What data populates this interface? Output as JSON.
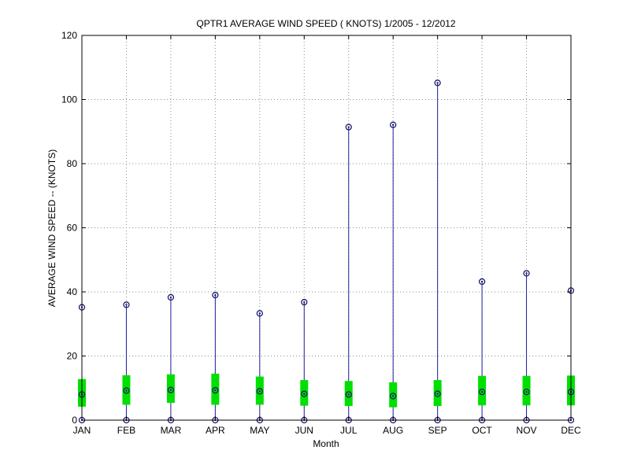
{
  "chart_data": {
    "type": "box",
    "title": "QPTR1  AVERAGE WIND SPEED ( KNOTS) 1/2005 - 12/2012",
    "xlabel": "Month",
    "ylabel": "AVERAGE WIND SPEED -- (KNOTS)",
    "categories": [
      "JAN",
      "FEB",
      "MAR",
      "APR",
      "MAY",
      "JUN",
      "JUL",
      "AUG",
      "SEP",
      "OCT",
      "NOV",
      "DEC"
    ],
    "ylim": [
      0,
      120
    ],
    "yticks": [
      0,
      20,
      40,
      60,
      80,
      100,
      120
    ],
    "grid": true,
    "min": [
      0,
      0,
      0,
      0,
      0,
      0,
      0,
      0,
      0,
      0,
      0,
      0
    ],
    "max": [
      35.2,
      36.0,
      38.3,
      39.0,
      33.3,
      36.8,
      91.4,
      92.1,
      105.2,
      43.2,
      45.8,
      40.4
    ],
    "q1": [
      4.2,
      4.8,
      5.4,
      4.8,
      4.8,
      4.5,
      4.4,
      4.0,
      4.4,
      4.6,
      4.6,
      4.6
    ],
    "median": [
      8.0,
      9.2,
      9.4,
      9.3,
      9.0,
      8.2,
      8.0,
      7.5,
      8.2,
      8.8,
      8.8,
      8.8
    ],
    "q3": [
      12.8,
      14.0,
      14.3,
      14.5,
      13.6,
      12.5,
      12.2,
      11.8,
      12.5,
      13.8,
      13.8,
      13.9
    ],
    "colors": {
      "whisker": "#1f1f9e",
      "box": "#00e000",
      "marker": "#1a1a6e",
      "grid": "#8c8c8c"
    }
  }
}
